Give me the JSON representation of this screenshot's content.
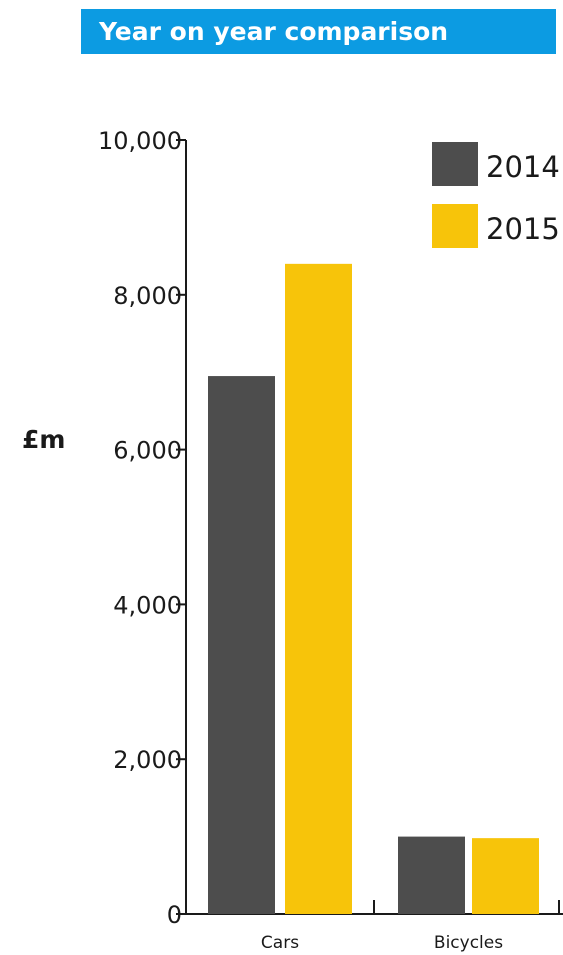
{
  "chart_data": {
    "type": "bar",
    "title": "Year on year comparison",
    "ylabel": "£m",
    "xlabel": "",
    "categories": [
      "Cars",
      "Bicycles"
    ],
    "series": [
      {
        "name": "2014",
        "color": "#4d4d4d",
        "values": [
          6950,
          1000
        ]
      },
      {
        "name": "2015",
        "color": "#f7c40a",
        "values": [
          8400,
          980
        ]
      }
    ],
    "ylim": [
      0,
      10000
    ],
    "yticks": [
      0,
      2000,
      4000,
      6000,
      8000,
      10000
    ],
    "ytick_labels": [
      "0",
      "2,000",
      "4,000",
      "6,000",
      "8,000",
      "10,000"
    ],
    "legend_position": "top-right",
    "grid": false
  },
  "colors": {
    "title_background": "#0c9be2",
    "title_text": "#ffffff",
    "axis": "#1a1a1a"
  }
}
